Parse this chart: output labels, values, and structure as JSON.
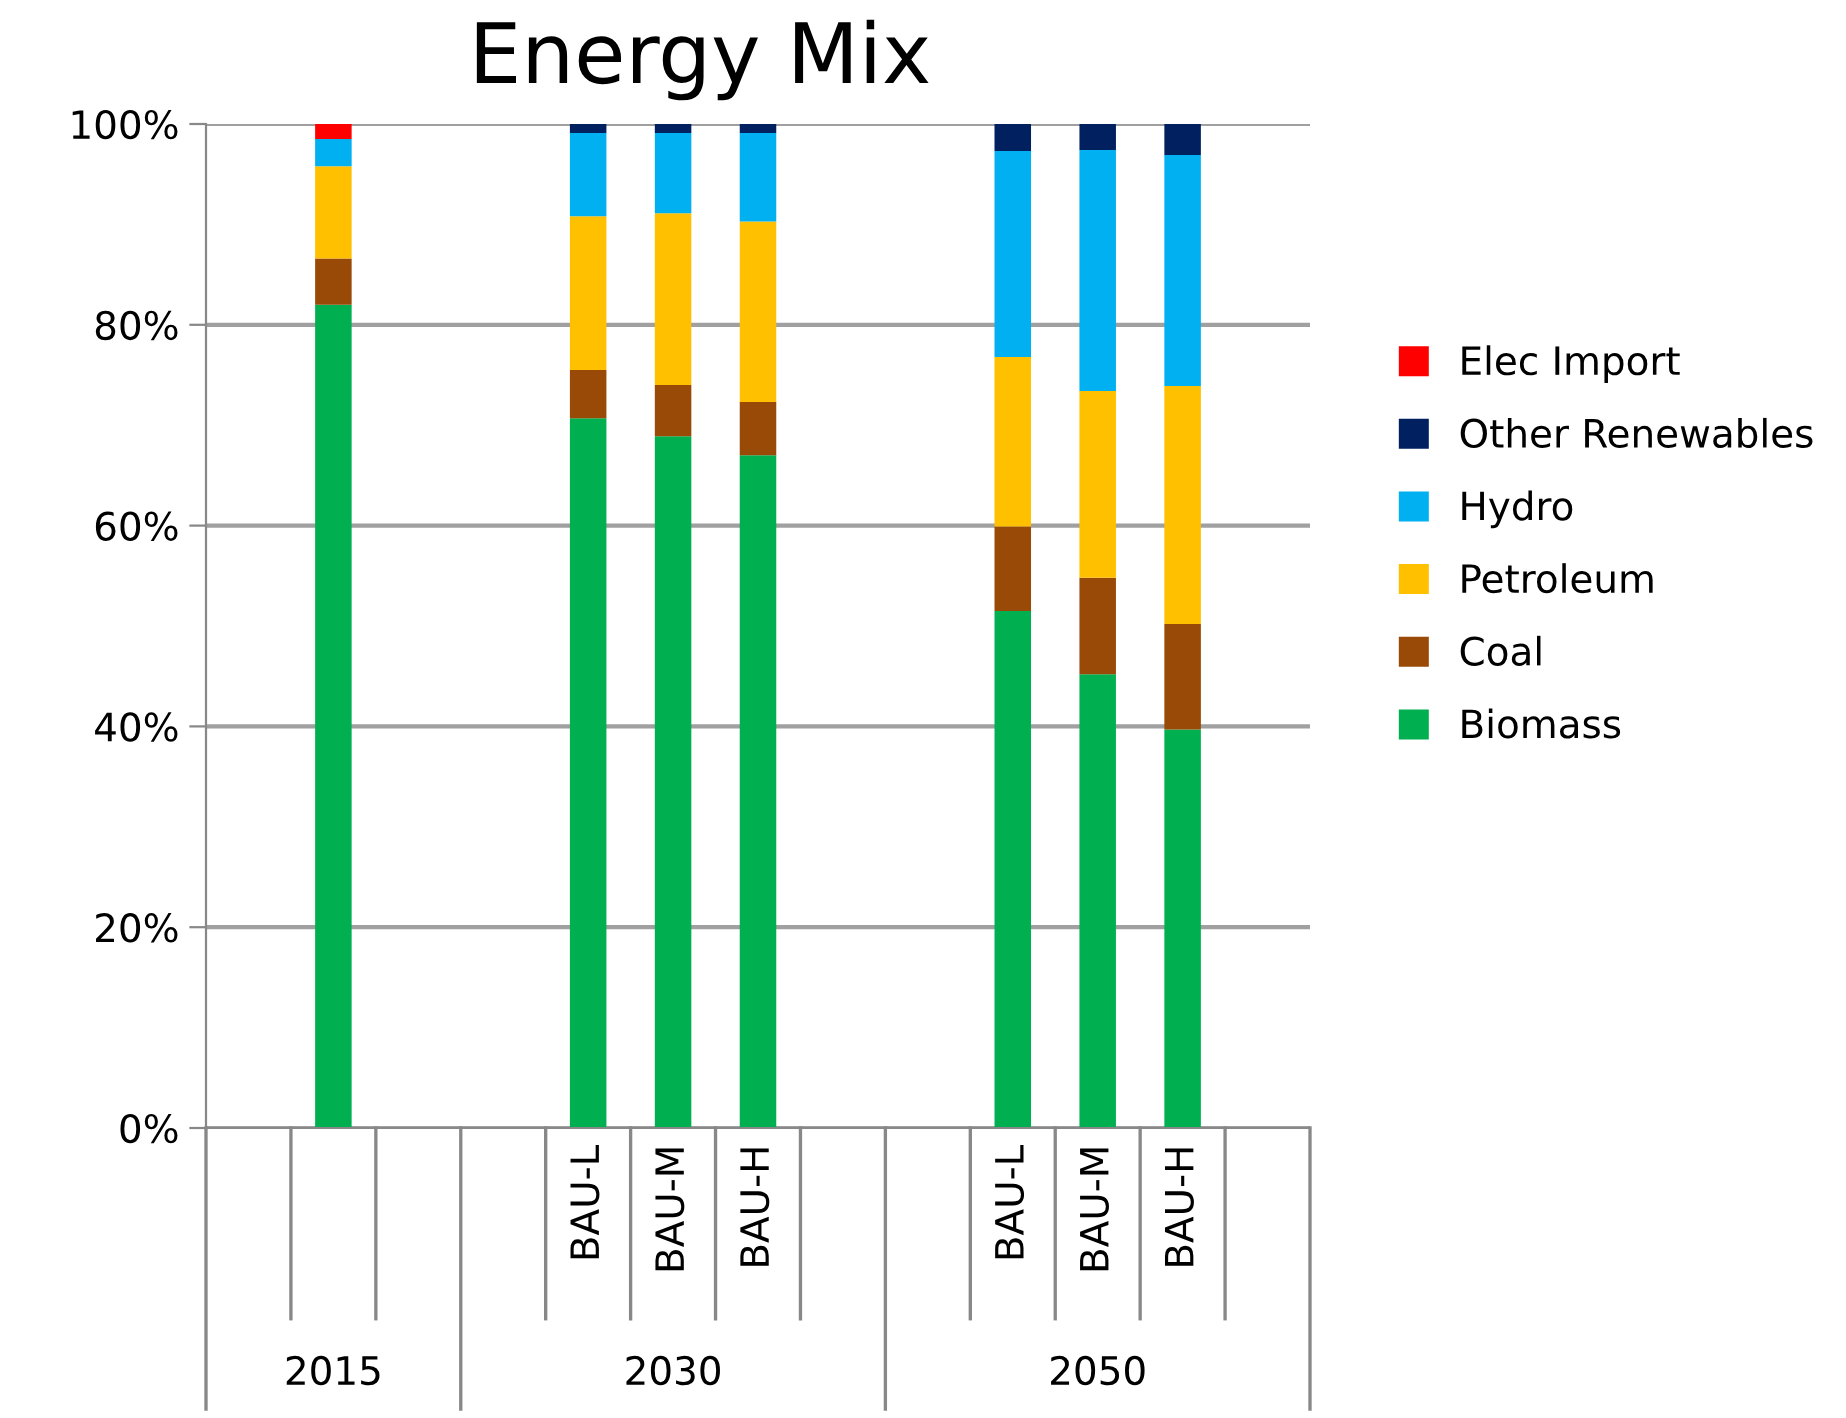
{
  "chart_data": {
    "type": "bar",
    "title": "Energy Mix",
    "stacked": true,
    "categories": [
      null,
      null,
      null,
      null,
      "BAU-L",
      "BAU-M",
      "BAU-H",
      null,
      null,
      "BAU-L",
      "BAU-M",
      "BAU-H",
      null
    ],
    "series": [
      {
        "name": "Biomass",
        "color": "#00b050",
        "values": [
          null,
          82.0,
          null,
          null,
          70.7,
          68.9,
          67.0,
          null,
          null,
          51.5,
          45.2,
          39.7,
          null
        ]
      },
      {
        "name": "Coal",
        "color": "#994a07",
        "values": [
          null,
          4.6,
          null,
          null,
          4.8,
          5.1,
          5.3,
          null,
          null,
          8.4,
          9.6,
          10.5,
          null
        ]
      },
      {
        "name": "Petroleum",
        "color": "#ffc000",
        "values": [
          null,
          9.2,
          null,
          null,
          15.3,
          17.1,
          18.0,
          null,
          null,
          16.9,
          18.6,
          23.7,
          null
        ]
      },
      {
        "name": "Hydro",
        "color": "#00b0f0",
        "values": [
          null,
          2.7,
          null,
          null,
          8.3,
          8.0,
          8.8,
          null,
          null,
          20.5,
          24.0,
          23.0,
          null
        ]
      },
      {
        "name": "Other Renewables",
        "color": "#002060",
        "values": [
          null,
          0.0,
          null,
          null,
          0.9,
          0.9,
          0.9,
          null,
          null,
          2.7,
          2.6,
          3.1,
          null
        ]
      },
      {
        "name": "Elec Import",
        "color": "#ff0000",
        "values": [
          null,
          1.5,
          null,
          null,
          0.0,
          0.0,
          0.0,
          null,
          null,
          0.0,
          0.0,
          0.0,
          null
        ]
      }
    ],
    "annotations": [
      "2015",
      "2030",
      "2050"
    ],
    "ylim": [
      0,
      100
    ],
    "yticks": [
      {
        "value": 0,
        "label": "0%"
      },
      {
        "value": 20,
        "label": "20%"
      },
      {
        "value": 40,
        "label": "40%"
      },
      {
        "value": 60,
        "label": "60%"
      },
      {
        "value": 80,
        "label": "80%"
      },
      {
        "value": 100,
        "label": "100%"
      }
    ],
    "grid": "y",
    "legend": "right"
  }
}
